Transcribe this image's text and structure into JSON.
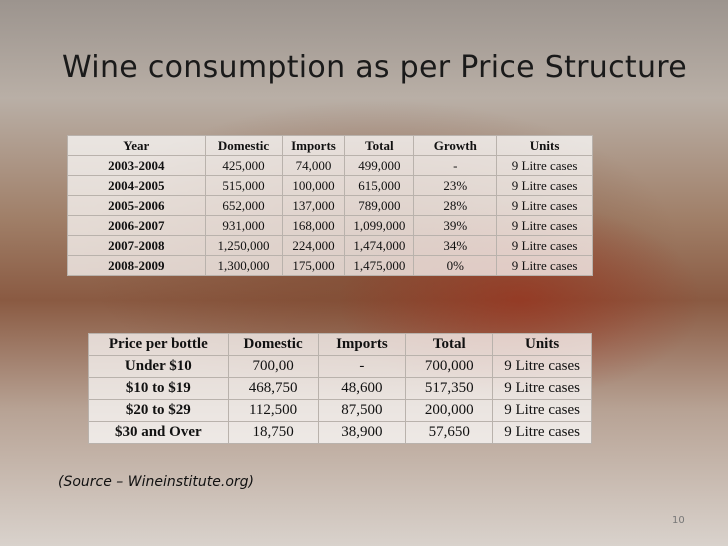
{
  "title": "Wine consumption as per Price Structure",
  "table1": {
    "header": [
      "Year",
      "Domestic",
      "Imports",
      "Total",
      "Growth",
      "Units"
    ],
    "rows": [
      [
        "2003-2004",
        "425,000",
        "74,000",
        "499,000",
        "-",
        "9 Litre cases"
      ],
      [
        "2004-2005",
        "515,000",
        "100,000",
        "615,000",
        "23%",
        "9 Litre cases"
      ],
      [
        "2005-2006",
        "652,000",
        "137,000",
        "789,000",
        "28%",
        "9 Litre cases"
      ],
      [
        "2006-2007",
        "931,000",
        "168,000",
        "1,099,000",
        "39%",
        "9 Litre cases"
      ],
      [
        "2007-2008",
        "1,250,000",
        "224,000",
        "1,474,000",
        "34%",
        "9 Litre cases"
      ],
      [
        "2008-2009",
        "1,300,000",
        "175,000",
        "1,475,000",
        "0%",
        "9 Litre cases"
      ]
    ]
  },
  "table2": {
    "header": [
      "Price per bottle",
      "Domestic",
      "Imports",
      "Total",
      "Units"
    ],
    "rows": [
      [
        "Under $10",
        "700,00",
        "-",
        "700,000",
        "9 Litre cases"
      ],
      [
        "$10 to $19",
        "468,750",
        "48,600",
        "517,350",
        "9 Litre cases"
      ],
      [
        "$20 to $29",
        "112,500",
        "87,500",
        "200,000",
        "9 Litre cases"
      ],
      [
        "$30 and Over",
        "18,750",
        "38,900",
        "57,650",
        "9 Litre cases"
      ]
    ]
  },
  "source": "(Source – Wineinstitute.org)",
  "page_number": "10"
}
